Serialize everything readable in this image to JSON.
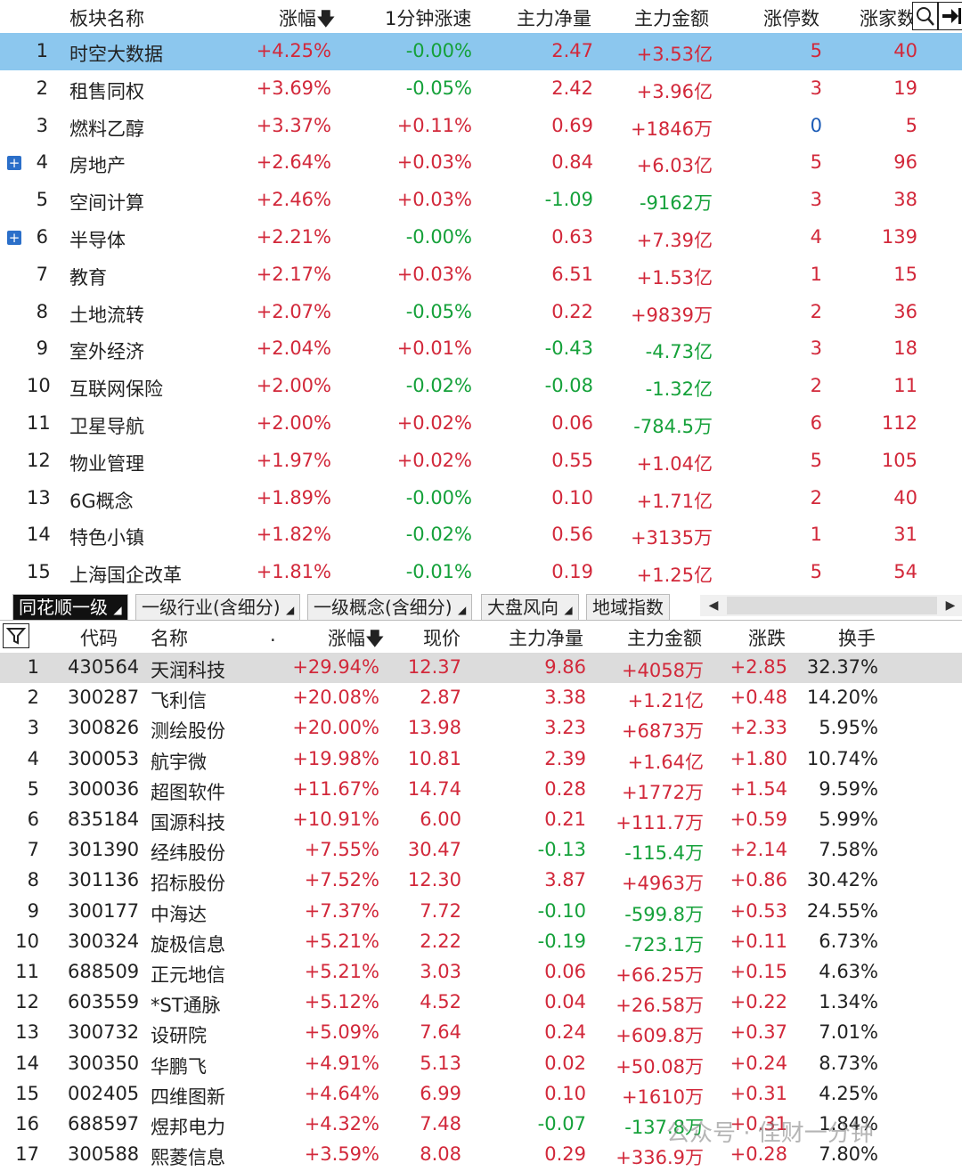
{
  "top_table": {
    "headers": {
      "name": "板块名称",
      "change": "涨幅",
      "speed": "1分钟涨速",
      "net": "主力净量",
      "amount": "主力金额",
      "limitup": "涨停数",
      "upcount": "涨家数"
    },
    "rows": [
      {
        "idx": "1",
        "name": "时空大数据",
        "change": "+4.25%",
        "speed": "-0.00%",
        "net": "2.47",
        "amount": "+3.53亿",
        "limitup": "5",
        "upcount": "40",
        "expand": false
      },
      {
        "idx": "2",
        "name": "租售同权",
        "change": "+3.69%",
        "speed": "-0.05%",
        "net": "2.42",
        "amount": "+3.96亿",
        "limitup": "3",
        "upcount": "19",
        "expand": false
      },
      {
        "idx": "3",
        "name": "燃料乙醇",
        "change": "+3.37%",
        "speed": "+0.11%",
        "net": "0.69",
        "amount": "+1846万",
        "limitup": "0",
        "upcount": "5",
        "expand": false
      },
      {
        "idx": "4",
        "name": "房地产",
        "change": "+2.64%",
        "speed": "+0.03%",
        "net": "0.84",
        "amount": "+6.03亿",
        "limitup": "5",
        "upcount": "96",
        "expand": true
      },
      {
        "idx": "5",
        "name": "空间计算",
        "change": "+2.46%",
        "speed": "+0.03%",
        "net": "-1.09",
        "amount": "-9162万",
        "limitup": "3",
        "upcount": "38",
        "expand": false
      },
      {
        "idx": "6",
        "name": "半导体",
        "change": "+2.21%",
        "speed": "-0.00%",
        "net": "0.63",
        "amount": "+7.39亿",
        "limitup": "4",
        "upcount": "139",
        "expand": true
      },
      {
        "idx": "7",
        "name": "教育",
        "change": "+2.17%",
        "speed": "+0.03%",
        "net": "6.51",
        "amount": "+1.53亿",
        "limitup": "1",
        "upcount": "15",
        "expand": false
      },
      {
        "idx": "8",
        "name": "土地流转",
        "change": "+2.07%",
        "speed": "-0.05%",
        "net": "0.22",
        "amount": "+9839万",
        "limitup": "2",
        "upcount": "36",
        "expand": false
      },
      {
        "idx": "9",
        "name": "室外经济",
        "change": "+2.04%",
        "speed": "+0.01%",
        "net": "-0.43",
        "amount": "-4.73亿",
        "limitup": "3",
        "upcount": "18",
        "expand": false
      },
      {
        "idx": "10",
        "name": "互联网保险",
        "change": "+2.00%",
        "speed": "-0.02%",
        "net": "-0.08",
        "amount": "-1.32亿",
        "limitup": "2",
        "upcount": "11",
        "expand": false
      },
      {
        "idx": "11",
        "name": "卫星导航",
        "change": "+2.00%",
        "speed": "+0.02%",
        "net": "0.06",
        "amount": "-784.5万",
        "limitup": "6",
        "upcount": "112",
        "expand": false
      },
      {
        "idx": "12",
        "name": "物业管理",
        "change": "+1.97%",
        "speed": "+0.02%",
        "net": "0.55",
        "amount": "+1.04亿",
        "limitup": "5",
        "upcount": "105",
        "expand": false
      },
      {
        "idx": "13",
        "name": "6G概念",
        "change": "+1.89%",
        "speed": "-0.00%",
        "net": "0.10",
        "amount": "+1.71亿",
        "limitup": "2",
        "upcount": "40",
        "expand": false
      },
      {
        "idx": "14",
        "name": "特色小镇",
        "change": "+1.82%",
        "speed": "-0.02%",
        "net": "0.56",
        "amount": "+3135万",
        "limitup": "1",
        "upcount": "31",
        "expand": false
      },
      {
        "idx": "15",
        "name": "上海国企改革",
        "change": "+1.81%",
        "speed": "-0.01%",
        "net": "0.19",
        "amount": "+1.25亿",
        "limitup": "5",
        "upcount": "54",
        "expand": false
      }
    ]
  },
  "tabs": [
    "同花顺一级",
    "一级行业(含细分)",
    "一级概念(含细分)",
    "大盘风向",
    "地域指数"
  ],
  "bottom_table": {
    "headers": {
      "code": "代码",
      "name": "名称",
      "dot": ".",
      "change": "涨幅",
      "price": "现价",
      "net": "主力净量",
      "amount": "主力金额",
      "diff": "涨跌",
      "turnover": "换手"
    },
    "rows": [
      {
        "idx": "1",
        "code": "430564",
        "name": "天润科技",
        "change": "+29.94%",
        "price": "12.37",
        "net": "9.86",
        "amount": "+4058万",
        "diff": "+2.85",
        "turnover": "32.37%"
      },
      {
        "idx": "2",
        "code": "300287",
        "name": "飞利信",
        "change": "+20.08%",
        "price": "2.87",
        "net": "3.38",
        "amount": "+1.21亿",
        "diff": "+0.48",
        "turnover": "14.20%"
      },
      {
        "idx": "3",
        "code": "300826",
        "name": "测绘股份",
        "change": "+20.00%",
        "price": "13.98",
        "net": "3.23",
        "amount": "+6873万",
        "diff": "+2.33",
        "turnover": "5.95%"
      },
      {
        "idx": "4",
        "code": "300053",
        "name": "航宇微",
        "change": "+19.98%",
        "price": "10.81",
        "net": "2.39",
        "amount": "+1.64亿",
        "diff": "+1.80",
        "turnover": "10.74%"
      },
      {
        "idx": "5",
        "code": "300036",
        "name": "超图软件",
        "change": "+11.67%",
        "price": "14.74",
        "net": "0.28",
        "amount": "+1772万",
        "diff": "+1.54",
        "turnover": "9.59%"
      },
      {
        "idx": "6",
        "code": "835184",
        "name": "国源科技",
        "change": "+10.91%",
        "price": "6.00",
        "net": "0.21",
        "amount": "+111.7万",
        "diff": "+0.59",
        "turnover": "5.99%"
      },
      {
        "idx": "7",
        "code": "301390",
        "name": "经纬股份",
        "change": "+7.55%",
        "price": "30.47",
        "net": "-0.13",
        "amount": "-115.4万",
        "diff": "+2.14",
        "turnover": "7.58%"
      },
      {
        "idx": "8",
        "code": "301136",
        "name": "招标股份",
        "change": "+7.52%",
        "price": "12.30",
        "net": "3.87",
        "amount": "+4963万",
        "diff": "+0.86",
        "turnover": "30.42%"
      },
      {
        "idx": "9",
        "code": "300177",
        "name": "中海达",
        "change": "+7.37%",
        "price": "7.72",
        "net": "-0.10",
        "amount": "-599.8万",
        "diff": "+0.53",
        "turnover": "24.55%"
      },
      {
        "idx": "10",
        "code": "300324",
        "name": "旋极信息",
        "change": "+5.21%",
        "price": "2.22",
        "net": "-0.19",
        "amount": "-723.1万",
        "diff": "+0.11",
        "turnover": "6.73%"
      },
      {
        "idx": "11",
        "code": "688509",
        "name": "正元地信",
        "change": "+5.21%",
        "price": "3.03",
        "net": "0.06",
        "amount": "+66.25万",
        "diff": "+0.15",
        "turnover": "4.63%"
      },
      {
        "idx": "12",
        "code": "603559",
        "name": "*ST通脉",
        "change": "+5.12%",
        "price": "4.52",
        "net": "0.04",
        "amount": "+26.58万",
        "diff": "+0.22",
        "turnover": "1.34%"
      },
      {
        "idx": "13",
        "code": "300732",
        "name": "设研院",
        "change": "+5.09%",
        "price": "7.64",
        "net": "0.24",
        "amount": "+609.8万",
        "diff": "+0.37",
        "turnover": "7.01%"
      },
      {
        "idx": "14",
        "code": "300350",
        "name": "华鹏飞",
        "change": "+4.91%",
        "price": "5.13",
        "net": "0.02",
        "amount": "+50.08万",
        "diff": "+0.24",
        "turnover": "8.73%"
      },
      {
        "idx": "15",
        "code": "002405",
        "name": "四维图新",
        "change": "+4.64%",
        "price": "6.99",
        "net": "0.10",
        "amount": "+1610万",
        "diff": "+0.31",
        "turnover": "4.25%"
      },
      {
        "idx": "16",
        "code": "688597",
        "name": "煜邦电力",
        "change": "+4.32%",
        "price": "7.48",
        "net": "-0.07",
        "amount": "-137.8万",
        "diff": "+0.31",
        "turnover": "1.84%"
      },
      {
        "idx": "17",
        "code": "300588",
        "name": "熙菱信息",
        "change": "+3.59%",
        "price": "8.08",
        "net": "0.29",
        "amount": "+336.9万",
        "diff": "+0.28",
        "turnover": "7.80%"
      }
    ]
  },
  "watermark": "公众号 · 佳财一分钟",
  "colors": {
    "up": "#d2283a",
    "down": "#15a13a",
    "selected_top": "#8cc7ee",
    "selected_bottom": "#dcdcdc"
  }
}
